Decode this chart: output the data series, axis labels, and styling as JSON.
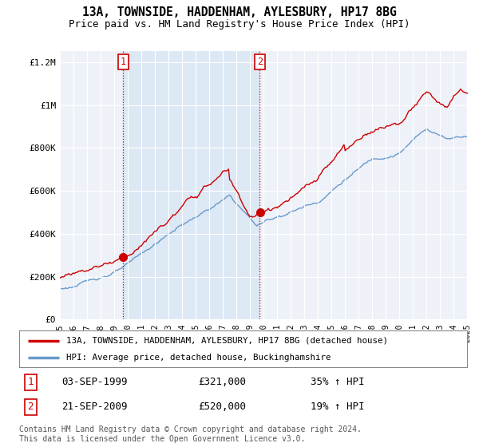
{
  "title_line1": "13A, TOWNSIDE, HADDENHAM, AYLESBURY, HP17 8BG",
  "title_line2": "Price paid vs. HM Land Registry's House Price Index (HPI)",
  "ylim": [
    0,
    1250000
  ],
  "yticks": [
    0,
    200000,
    400000,
    600000,
    800000,
    1000000,
    1200000
  ],
  "ytick_labels": [
    "£0",
    "£200K",
    "£400K",
    "£600K",
    "£800K",
    "£1M",
    "£1.2M"
  ],
  "hpi_color": "#6699cc",
  "price_color": "#cc0000",
  "marker1_year": 1999.67,
  "marker1_price": 321000,
  "marker2_year": 2009.72,
  "marker2_price": 520000,
  "shade_color": "#dde8f5",
  "legend_line1": "13A, TOWNSIDE, HADDENHAM, AYLESBURY, HP17 8BG (detached house)",
  "legend_line2": "HPI: Average price, detached house, Buckinghamshire",
  "table_rows": [
    {
      "num": "1",
      "date": "03-SEP-1999",
      "price": "£321,000",
      "hpi": "35% ↑ HPI"
    },
    {
      "num": "2",
      "date": "21-SEP-2009",
      "price": "£520,000",
      "hpi": "19% ↑ HPI"
    }
  ],
  "footer": "Contains HM Land Registry data © Crown copyright and database right 2024.\nThis data is licensed under the Open Government Licence v3.0.",
  "bg_color": "#eef2f8",
  "plot_bg": "#eef2f8",
  "xmin": 1995,
  "xmax": 2025.5
}
